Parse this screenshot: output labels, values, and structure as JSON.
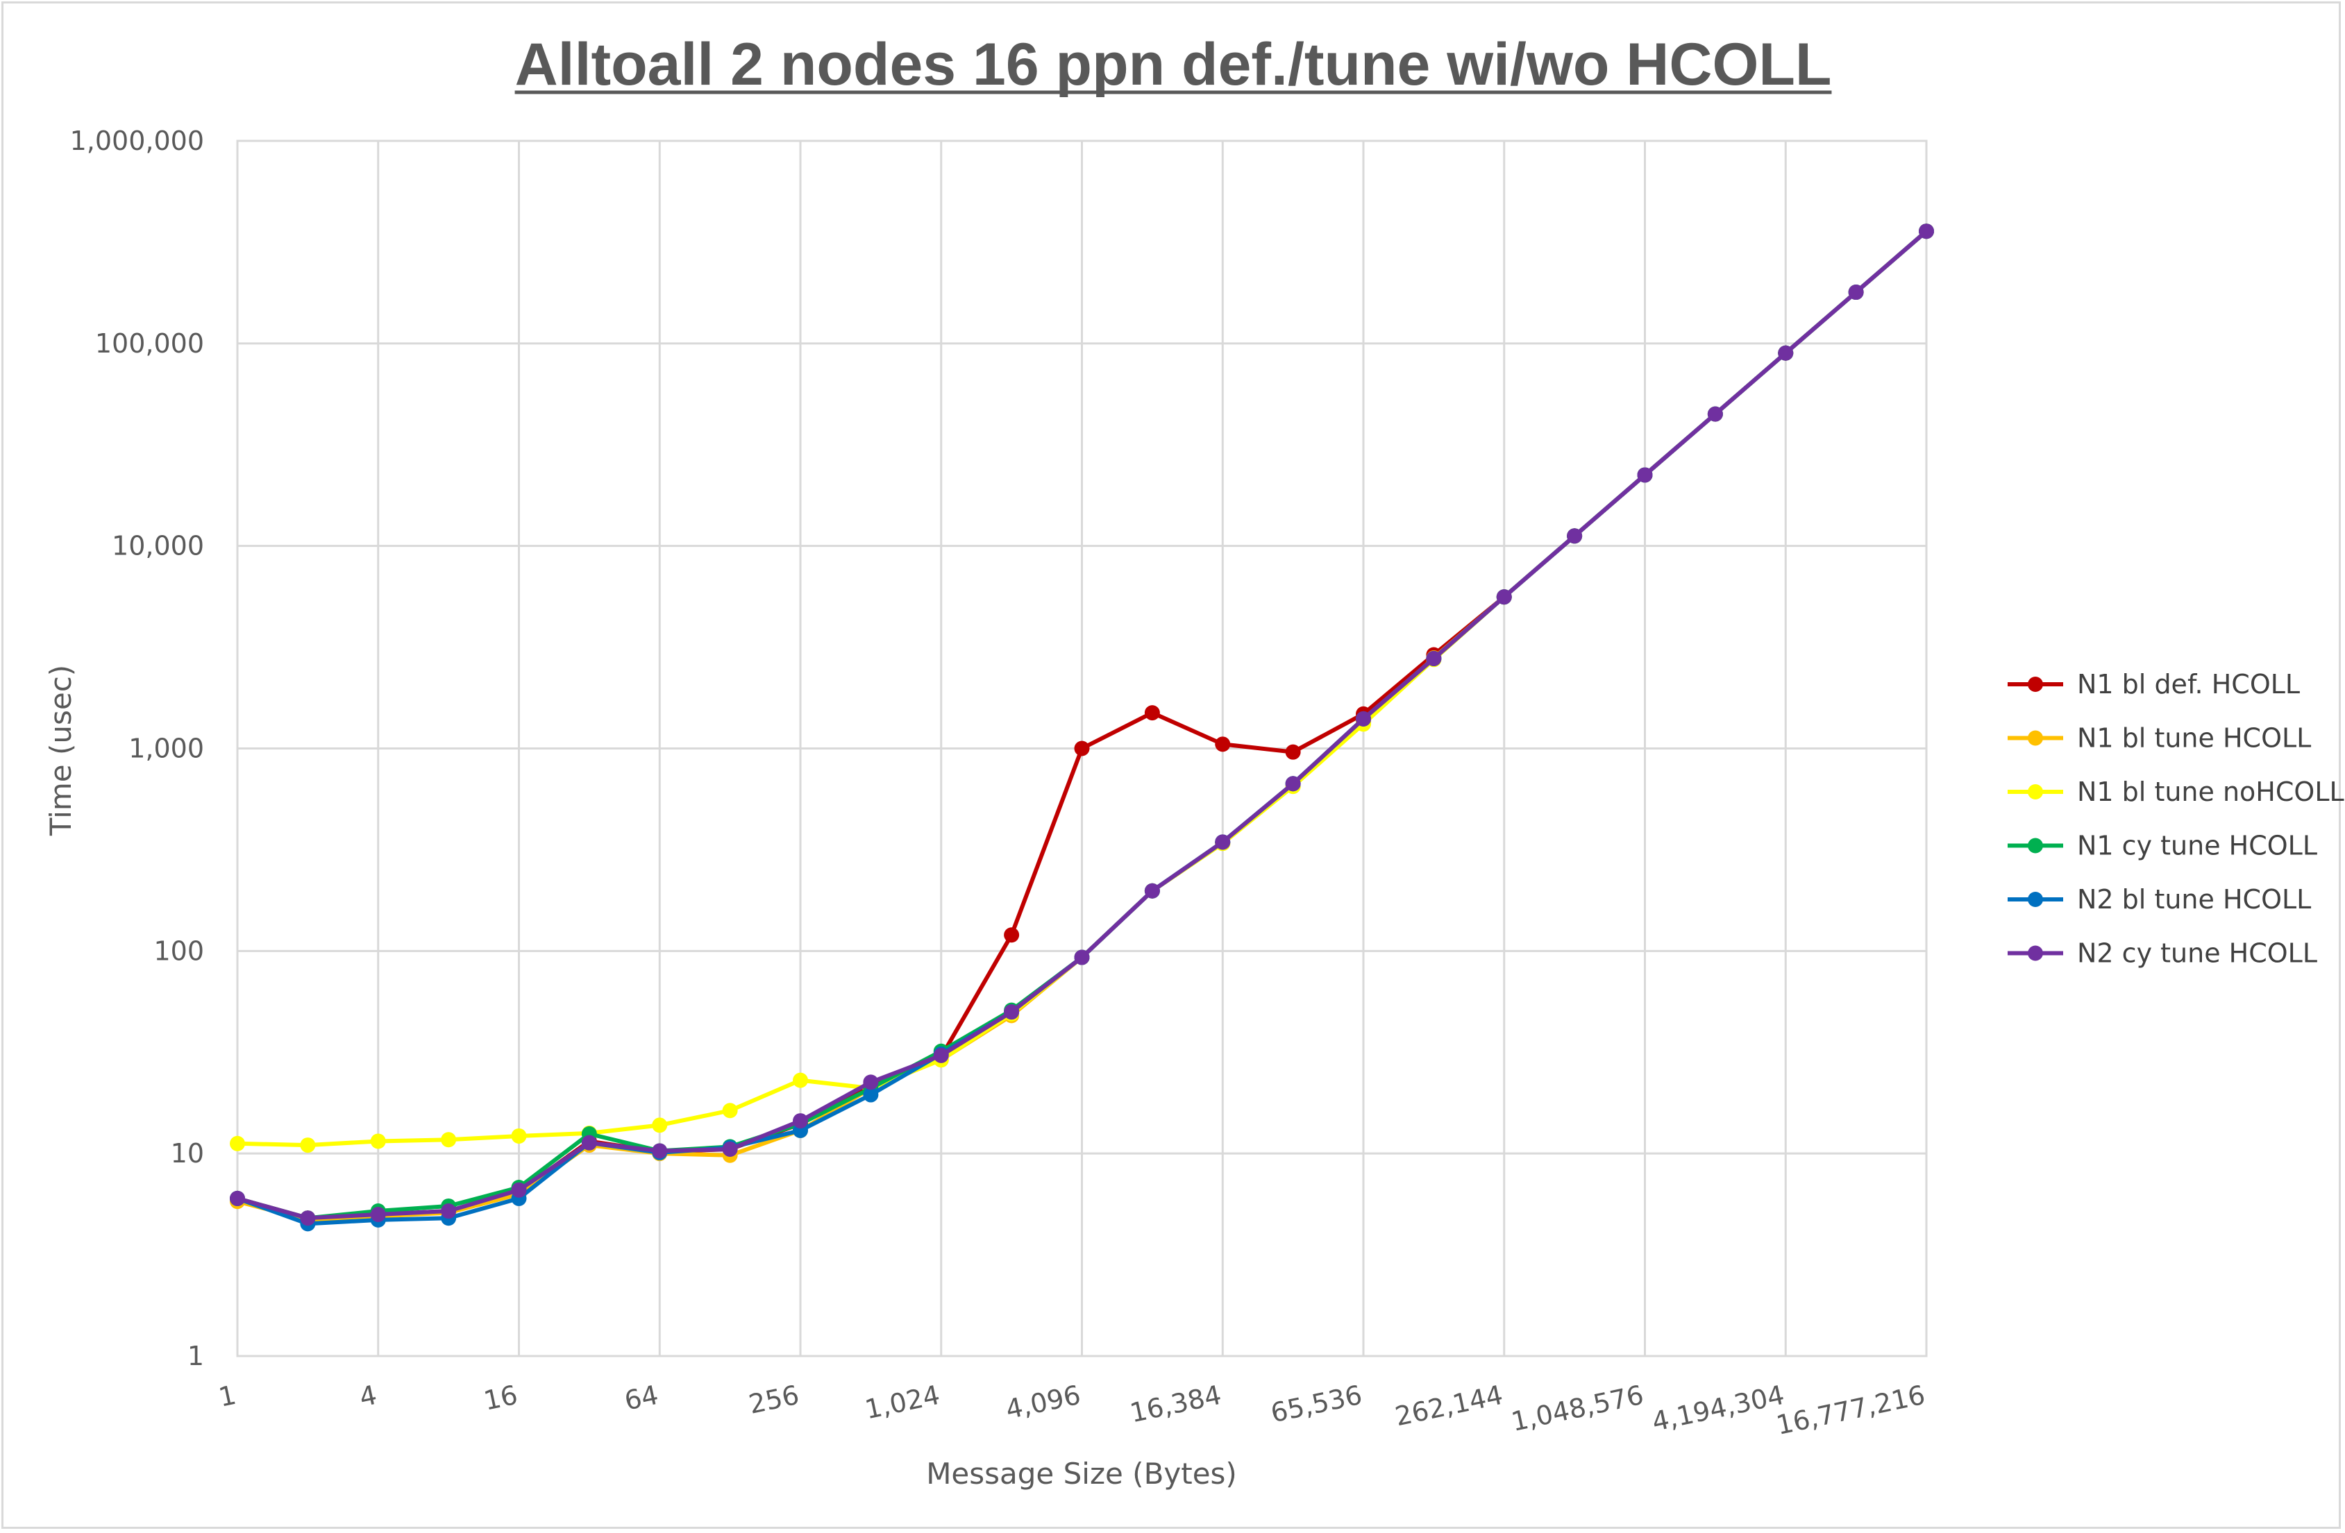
{
  "chart_data": {
    "type": "line",
    "title": "Alltoall 2 nodes 16 ppn def./tune wi/wo HCOLL",
    "xlabel": "Message Size (Bytes)",
    "ylabel": "Time (usec)",
    "x_scale": "log2",
    "y_scale": "log10",
    "xlim": [
      1,
      16777216
    ],
    "ylim": [
      1,
      1000000
    ],
    "grid": true,
    "legend_position": "right",
    "x_ticks": [
      1,
      4,
      16,
      64,
      256,
      1024,
      4096,
      16384,
      65536,
      262144,
      1048576,
      4194304,
      16777216
    ],
    "x_tick_labels": [
      "1",
      "4",
      "16",
      "64",
      "256",
      "1,024",
      "4,096",
      "16,384",
      "65,536",
      "262,144",
      "1,048,576",
      "4,194,304",
      "16,777,216"
    ],
    "y_ticks": [
      1,
      10,
      100,
      1000,
      10000,
      100000,
      1000000
    ],
    "y_tick_labels": [
      "1",
      "10",
      "100",
      "1,000",
      "10,000",
      "100,000",
      "1,000,000"
    ],
    "x": [
      1,
      2,
      4,
      8,
      16,
      32,
      64,
      128,
      256,
      512,
      1024,
      2048,
      4096,
      8192,
      16384,
      32768,
      65536,
      131072,
      262144,
      524288,
      1048576,
      2097152,
      4194304,
      8388608,
      16777216
    ],
    "series": [
      {
        "name": "N1 bl def. HCOLL",
        "color": "#c00000",
        "values": [
          6.0,
          4.8,
          5.0,
          5.2,
          6.5,
          11.5,
          10.2,
          10.5,
          14,
          22,
          30,
          120,
          1000,
          1500,
          1050,
          960,
          1480,
          2900,
          5600,
          11200,
          22400,
          44800,
          89600,
          179000,
          358000
        ]
      },
      {
        "name": "N1 bl tune HCOLL",
        "color": "#ffc000",
        "values": [
          5.8,
          4.7,
          4.9,
          5.1,
          6.3,
          11.0,
          10.0,
          9.8,
          13,
          21,
          29,
          48,
          93,
          198,
          340,
          650,
          1350,
          2800,
          5600,
          11200,
          22400,
          44800,
          89600,
          179000,
          358000
        ]
      },
      {
        "name": "N1 bl tune noHCOLL",
        "color": "#ffff00",
        "values": [
          11.2,
          11.0,
          11.5,
          11.7,
          12.2,
          12.6,
          13.8,
          16.3,
          23,
          21,
          29,
          49,
          93,
          198,
          340,
          650,
          1320,
          2750,
          5600,
          11200,
          22400,
          44800,
          89600,
          179000,
          358000
        ]
      },
      {
        "name": "N1 cy tune HCOLL",
        "color": "#00b050",
        "values": [
          6.0,
          4.8,
          5.2,
          5.5,
          6.8,
          12.5,
          10.3,
          10.8,
          14,
          21,
          32,
          51,
          93,
          198,
          345,
          670,
          1400,
          2780,
          5600,
          11200,
          22400,
          44800,
          89600,
          179000,
          358000
        ]
      },
      {
        "name": "N2 bl tune HCOLL",
        "color": "#0070c0",
        "values": [
          6.0,
          4.5,
          4.7,
          4.8,
          6.0,
          11.3,
          10.1,
          10.7,
          13,
          19.5,
          31,
          50,
          93,
          198,
          345,
          670,
          1400,
          2780,
          5600,
          11200,
          22400,
          44800,
          89600,
          179000,
          358000
        ]
      },
      {
        "name": "N2 cy tune HCOLL",
        "color": "#7030a0",
        "values": [
          6.0,
          4.8,
          5.0,
          5.2,
          6.6,
          11.3,
          10.3,
          10.5,
          14.5,
          22.5,
          30.5,
          50,
          93,
          198,
          345,
          670,
          1400,
          2780,
          5600,
          11200,
          22400,
          44800,
          89600,
          179000,
          358000
        ]
      }
    ]
  }
}
